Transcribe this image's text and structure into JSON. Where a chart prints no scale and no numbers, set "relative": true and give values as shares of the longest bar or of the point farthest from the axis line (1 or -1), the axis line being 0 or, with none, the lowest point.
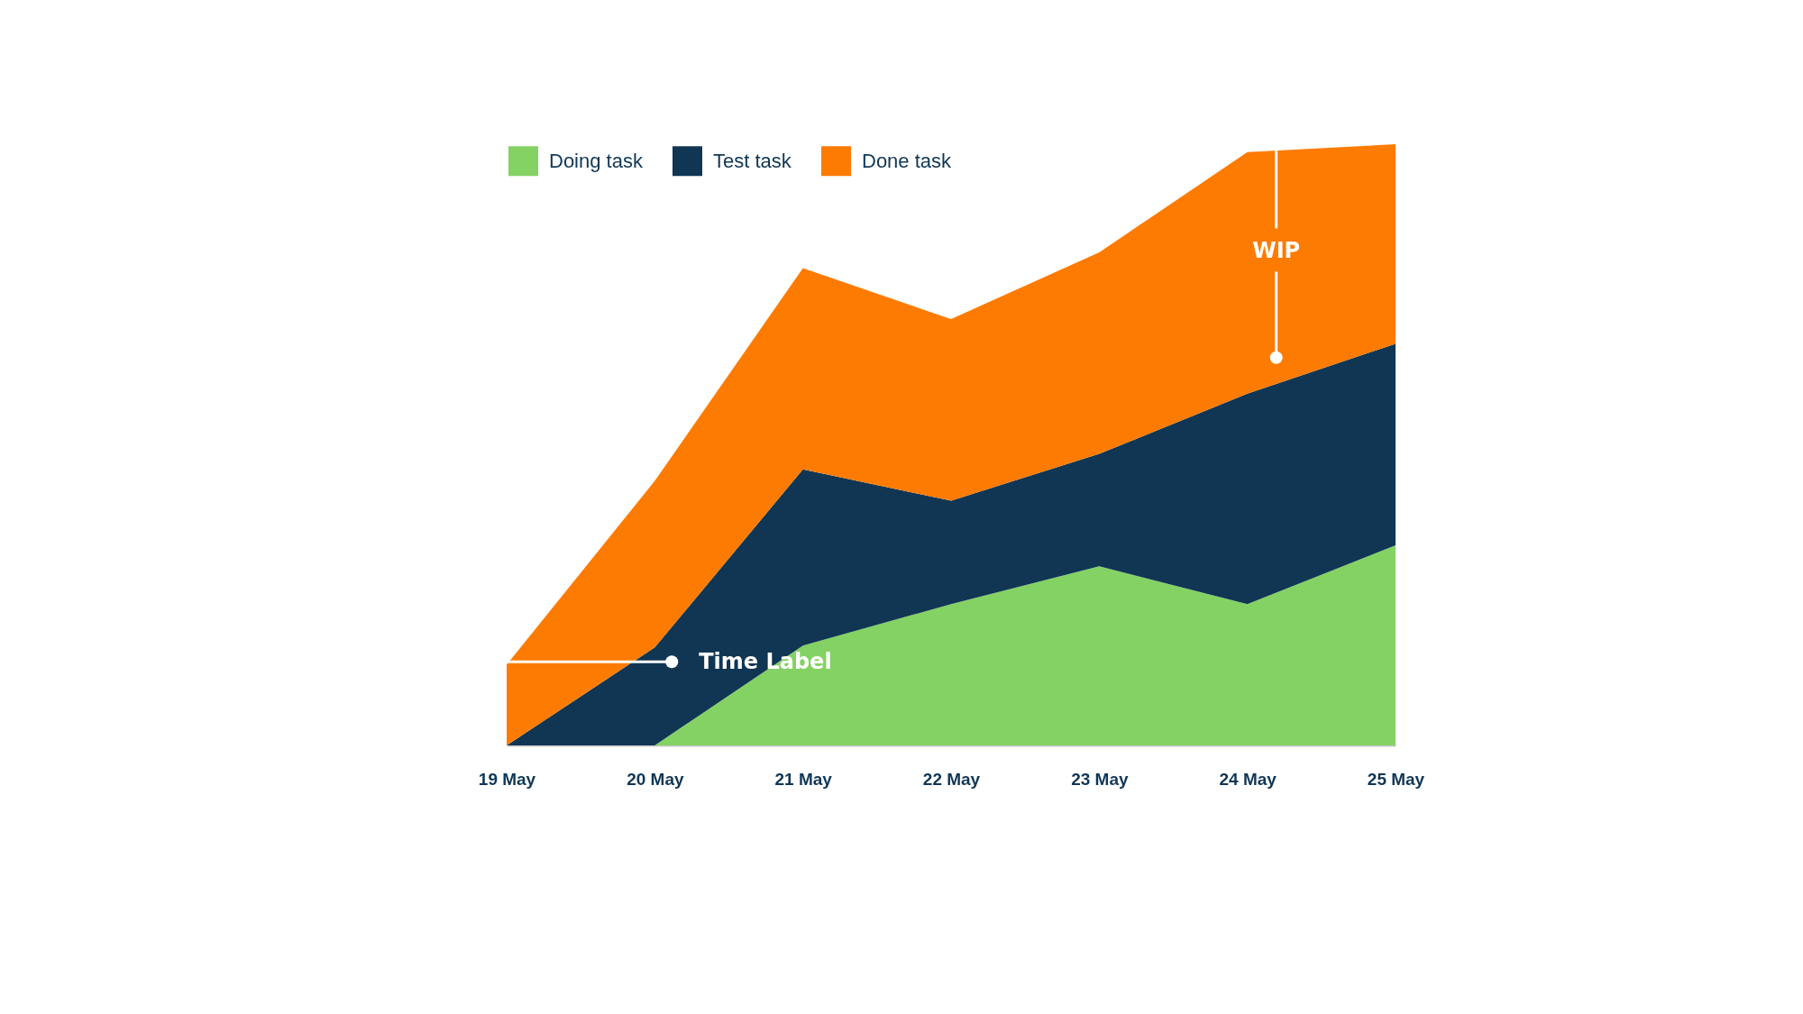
{
  "chart_data": {
    "type": "area",
    "stacked": true,
    "relative": true,
    "legend": "top left",
    "categories": [
      "19 May",
      "20 May",
      "21 May",
      "22 May",
      "23 May",
      "24 May",
      "25 May"
    ],
    "series": [
      {
        "name": "Doing task",
        "color": "#84d264",
        "values": [
          0,
          0,
          0.166,
          0.235,
          0.298,
          0.235,
          0.333
        ]
      },
      {
        "name": "Test task",
        "color": "#103654",
        "values": [
          0,
          0.163,
          0.293,
          0.172,
          0.187,
          0.35,
          0.335
        ]
      },
      {
        "name": "Done task",
        "color": "#fe7b01",
        "values": [
          0.134,
          0.277,
          0.335,
          0.302,
          0.335,
          0.402,
          0.332
        ]
      }
    ],
    "annotations": [
      "Time Label",
      "WIP"
    ]
  }
}
